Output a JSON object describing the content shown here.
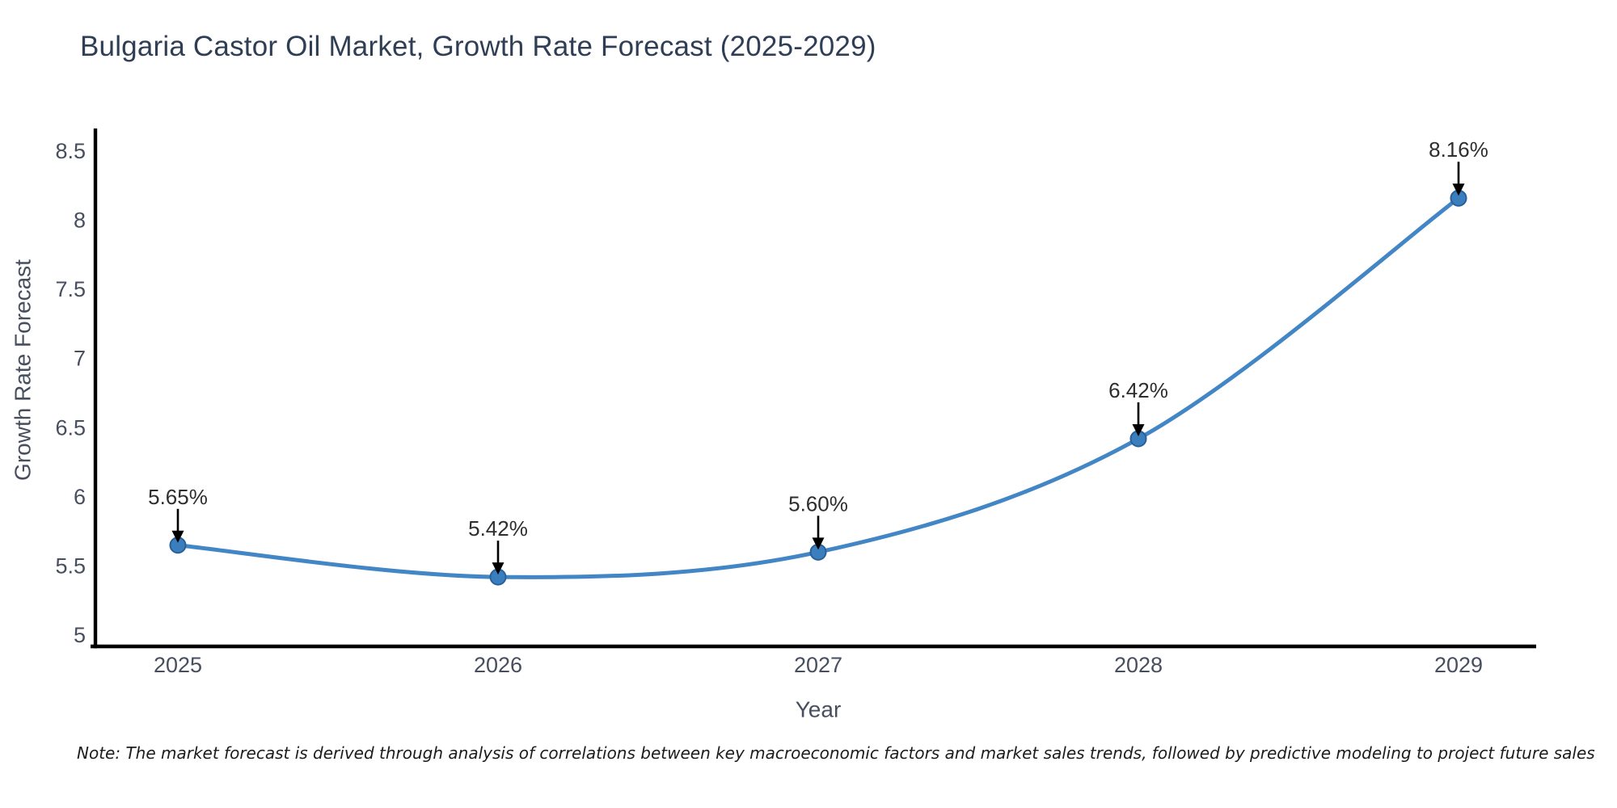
{
  "chart": {
    "title": "Bulgaria Castor Oil Market, Growth Rate Forecast (2025-2029)",
    "note": "Note: The market forecast is derived through analysis of correlations between key macroeconomic factors and market sales trends, followed by predictive modeling to project future sales"
  },
  "chart_data": {
    "type": "line",
    "title": "Bulgaria Castor Oil Market, Growth Rate Forecast (2025-2029)",
    "xlabel": "Year",
    "ylabel": "Growth Rate Forecast",
    "categories": [
      "2025",
      "2026",
      "2027",
      "2028",
      "2029"
    ],
    "values": [
      5.65,
      5.42,
      5.6,
      6.42,
      8.16
    ],
    "point_labels": [
      "5.65%",
      "5.42%",
      "5.60%",
      "6.42%",
      "8.16%"
    ],
    "y_ticks": [
      5,
      5.5,
      6,
      6.5,
      7,
      7.5,
      8,
      8.5
    ],
    "ylim": [
      5,
      8.5
    ],
    "grid": false,
    "legend": false,
    "marker_style": "circle",
    "annotation_arrow": "down-arrow",
    "colors": {
      "line": "#4286c5",
      "marker_fill": "#3b7ebd",
      "marker_edge": "#2a6099",
      "axis_line": "#000000",
      "title_text": "#2f3e55",
      "tick_text": "#474e5e",
      "annotation_text": "#2e2e2e",
      "note_text": "#1c1c1c"
    }
  }
}
